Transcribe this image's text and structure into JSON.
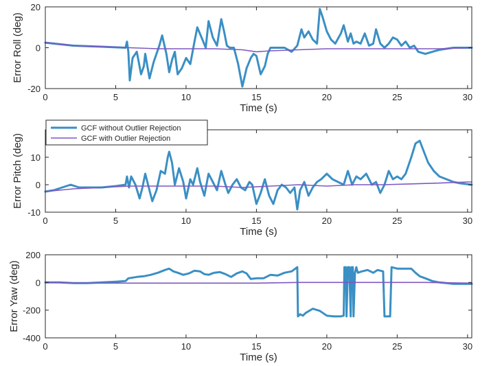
{
  "colors": {
    "series_without": "#3a8fc4",
    "series_with": "#7e57c2",
    "axis": "#262626"
  },
  "legend": {
    "placement": "top-left of middle panel",
    "entries": [
      "GCF without Outlier Rejection",
      "GCF with Outlier Rejection"
    ]
  },
  "chart_data": [
    {
      "type": "line",
      "xlabel": "Time (s)",
      "ylabel": "Error Roll (deg)",
      "xlim": [
        0,
        30.3
      ],
      "ylim": [
        -20,
        20
      ],
      "xticks": [
        0,
        5,
        10,
        15,
        20,
        25,
        30
      ],
      "yticks": [
        -20,
        0,
        20
      ],
      "grid": false,
      "series": [
        {
          "name": "GCF without Outlier Rejection",
          "x": [
            0,
            2,
            4,
            5.7,
            5.8,
            5.9,
            6.0,
            6.2,
            6.5,
            6.8,
            7.0,
            7.1,
            7.4,
            7.7,
            7.9,
            8.1,
            8.3,
            8.6,
            8.8,
            9.0,
            9.2,
            9.4,
            9.7,
            10.0,
            10.3,
            10.6,
            10.8,
            11.1,
            11.4,
            11.6,
            11.9,
            12.2,
            12.5,
            12.7,
            12.9,
            13.1,
            13.4,
            13.7,
            14.0,
            14.3,
            14.6,
            14.8,
            15.0,
            15.3,
            15.6,
            15.8,
            16.0,
            16.4,
            17.0,
            17.5,
            17.9,
            18.2,
            18.4,
            18.7,
            19.0,
            19.3,
            19.5,
            19.7,
            20.0,
            20.3,
            20.6,
            21.0,
            21.2,
            21.5,
            21.7,
            21.9,
            22.1,
            22.4,
            22.7,
            23.0,
            23.3,
            23.5,
            23.8,
            24.1,
            24.4,
            24.7,
            25.0,
            25.3,
            25.6,
            25.9,
            26.2,
            26.5,
            27.0,
            27.5,
            28.0,
            29.0,
            30.3
          ],
          "y": [
            2.5,
            1,
            0.5,
            0,
            3,
            -2,
            -16,
            -5,
            -2,
            -13,
            -9,
            -3,
            -15,
            -7,
            -3,
            1,
            6,
            -3,
            -12,
            -6,
            -2,
            -13,
            -10,
            -5,
            -8,
            3,
            10,
            5,
            0,
            13,
            5,
            1,
            14,
            8,
            1,
            0,
            0,
            -8,
            -19,
            -10,
            -5,
            -3,
            -4,
            -13,
            -9,
            -3,
            0,
            0,
            0,
            -2,
            1,
            9,
            5,
            8,
            4,
            2,
            19,
            15,
            8,
            4,
            2,
            7,
            11,
            3,
            7,
            2,
            3,
            2,
            7,
            1,
            2,
            9,
            2,
            0,
            2,
            5,
            4,
            1,
            3,
            0,
            1,
            -2,
            -3,
            -2,
            -1,
            0,
            0
          ]
        },
        {
          "name": "GCF with Outlier Rejection",
          "x": [
            0,
            2,
            4,
            6,
            8,
            10,
            12,
            14,
            15,
            16,
            18,
            20,
            22,
            24,
            26,
            28,
            30,
            30.3
          ],
          "y": [
            2.5,
            1,
            0.5,
            0,
            -0.5,
            -0.5,
            -0.5,
            -1,
            -2,
            -1.5,
            -1,
            -0.5,
            -0.5,
            -0.5,
            -0.5,
            -0.5,
            0,
            0
          ]
        }
      ]
    },
    {
      "type": "line",
      "xlabel": "Time (s)",
      "ylabel": "Error Pitch (deg)",
      "xlim": [
        0,
        30.3
      ],
      "ylim": [
        -10,
        20
      ],
      "xticks": [
        0,
        5,
        10,
        15,
        20,
        25,
        30
      ],
      "yticks": [
        -10,
        0,
        10
      ],
      "grid": false,
      "series": [
        {
          "name": "GCF without Outlier Rejection",
          "x": [
            0,
            0.6,
            1.2,
            1.8,
            2.4,
            3,
            4,
            5,
            5.7,
            5.8,
            5.95,
            6.1,
            6.4,
            6.7,
            6.9,
            7.1,
            7.3,
            7.6,
            7.9,
            8.2,
            8.5,
            8.7,
            8.8,
            9.0,
            9.2,
            9.5,
            9.8,
            10.0,
            10.3,
            10.5,
            10.8,
            11.0,
            11.3,
            11.6,
            11.9,
            12.2,
            12.5,
            12.8,
            13.0,
            13.3,
            13.6,
            13.9,
            14.2,
            14.5,
            14.7,
            15.0,
            15.3,
            15.6,
            15.9,
            16.2,
            16.5,
            16.8,
            17.1,
            17.4,
            17.7,
            17.9,
            18.1,
            18.4,
            18.7,
            19.0,
            19.3,
            19.6,
            20.0,
            20.4,
            20.8,
            21.2,
            21.5,
            21.8,
            22.1,
            22.4,
            22.8,
            23.2,
            23.5,
            23.8,
            24.1,
            24.4,
            24.7,
            25.0,
            25.3,
            25.6,
            26.0,
            26.3,
            26.6,
            26.9,
            27.2,
            27.6,
            28.0,
            28.5,
            29.0,
            29.5,
            30.3
          ],
          "y": [
            -2.5,
            -2,
            -1,
            0,
            -1,
            -1,
            -1,
            -0.5,
            0,
            3,
            -1,
            3,
            0,
            -5,
            -1,
            4,
            0,
            -6,
            -2,
            5,
            4,
            10,
            12,
            8,
            0,
            6,
            1,
            -5,
            2,
            0,
            6,
            1,
            -4,
            4,
            1,
            -2,
            5,
            0,
            -3,
            0,
            2,
            -1,
            -2,
            1,
            0,
            -7,
            -3,
            2,
            -4,
            -7,
            -2,
            0,
            -1,
            -3,
            -1,
            -9,
            -2,
            1,
            -4,
            -1,
            1,
            2,
            4,
            2,
            1,
            0,
            5,
            0,
            3,
            2,
            4,
            0,
            1,
            -3,
            0,
            5,
            2,
            3,
            2,
            4,
            10,
            15,
            16,
            12,
            8,
            5,
            3,
            2,
            1,
            0.5,
            0
          ]
        },
        {
          "name": "GCF with Outlier Rejection",
          "x": [
            0,
            2,
            4,
            6,
            8,
            10,
            12,
            14,
            16,
            18,
            20,
            22,
            24,
            26,
            28,
            30,
            30.3
          ],
          "y": [
            -2.5,
            -1.5,
            -1,
            -0.5,
            -0.5,
            -0.5,
            -0.5,
            -1,
            -0.5,
            0,
            -0.5,
            0,
            0,
            0.3,
            0.6,
            1,
            1
          ]
        }
      ]
    },
    {
      "type": "line",
      "xlabel": "Time (s)",
      "ylabel": "Error Yaw (deg)",
      "xlim": [
        0,
        30.3
      ],
      "ylim": [
        -400,
        200
      ],
      "xticks": [
        0,
        5,
        10,
        15,
        20,
        25,
        30
      ],
      "yticks": [
        -400,
        -200,
        0,
        200
      ],
      "grid": false,
      "series": [
        {
          "name": "GCF without Outlier Rejection",
          "x": [
            0,
            1,
            2,
            3,
            4,
            5,
            5.7,
            5.9,
            6.2,
            6.5,
            7.0,
            7.5,
            8.0,
            8.5,
            8.8,
            9.1,
            9.4,
            9.8,
            10.2,
            10.6,
            11.0,
            11.3,
            11.6,
            12.0,
            12.4,
            12.8,
            13.2,
            13.6,
            14.0,
            14.3,
            14.6,
            15.0,
            15.5,
            16.0,
            16.5,
            17.0,
            17.5,
            17.9,
            17.95,
            18.1,
            18.3,
            18.5,
            19.0,
            19.5,
            20.0,
            20.5,
            21.0,
            21.2,
            21.25,
            21.35,
            21.4,
            21.5,
            21.6,
            21.7,
            21.75,
            21.85,
            21.9,
            22.0,
            22.1,
            22.2,
            22.5,
            22.9,
            23.3,
            23.6,
            24.0,
            24.1,
            24.2,
            24.5,
            24.6,
            25.0,
            25.5,
            26.0,
            26.3,
            26.6,
            27.0,
            27.5,
            28.0,
            28.5,
            29.0,
            30.3
          ],
          "y": [
            0,
            0,
            -5,
            -5,
            0,
            5,
            10,
            30,
            35,
            40,
            45,
            55,
            70,
            90,
            100,
            80,
            70,
            55,
            65,
            85,
            80,
            60,
            55,
            70,
            75,
            60,
            40,
            65,
            80,
            65,
            25,
            30,
            30,
            55,
            50,
            70,
            80,
            110,
            -245,
            -230,
            -240,
            -220,
            -190,
            -205,
            -240,
            -245,
            -245,
            -240,
            110,
            110,
            -245,
            110,
            110,
            -245,
            110,
            110,
            -245,
            70,
            110,
            70,
            80,
            90,
            70,
            90,
            80,
            -245,
            -245,
            -245,
            110,
            100,
            100,
            100,
            70,
            45,
            30,
            10,
            0,
            -5,
            -10,
            -10
          ]
        },
        {
          "name": "GCF with Outlier Rejection",
          "x": [
            0,
            3,
            6,
            9,
            12,
            15,
            18,
            21,
            24,
            27,
            30.3
          ],
          "y": [
            0,
            -5,
            -5,
            -5,
            -5,
            -5,
            0,
            0,
            0,
            0,
            -5
          ]
        }
      ]
    }
  ]
}
